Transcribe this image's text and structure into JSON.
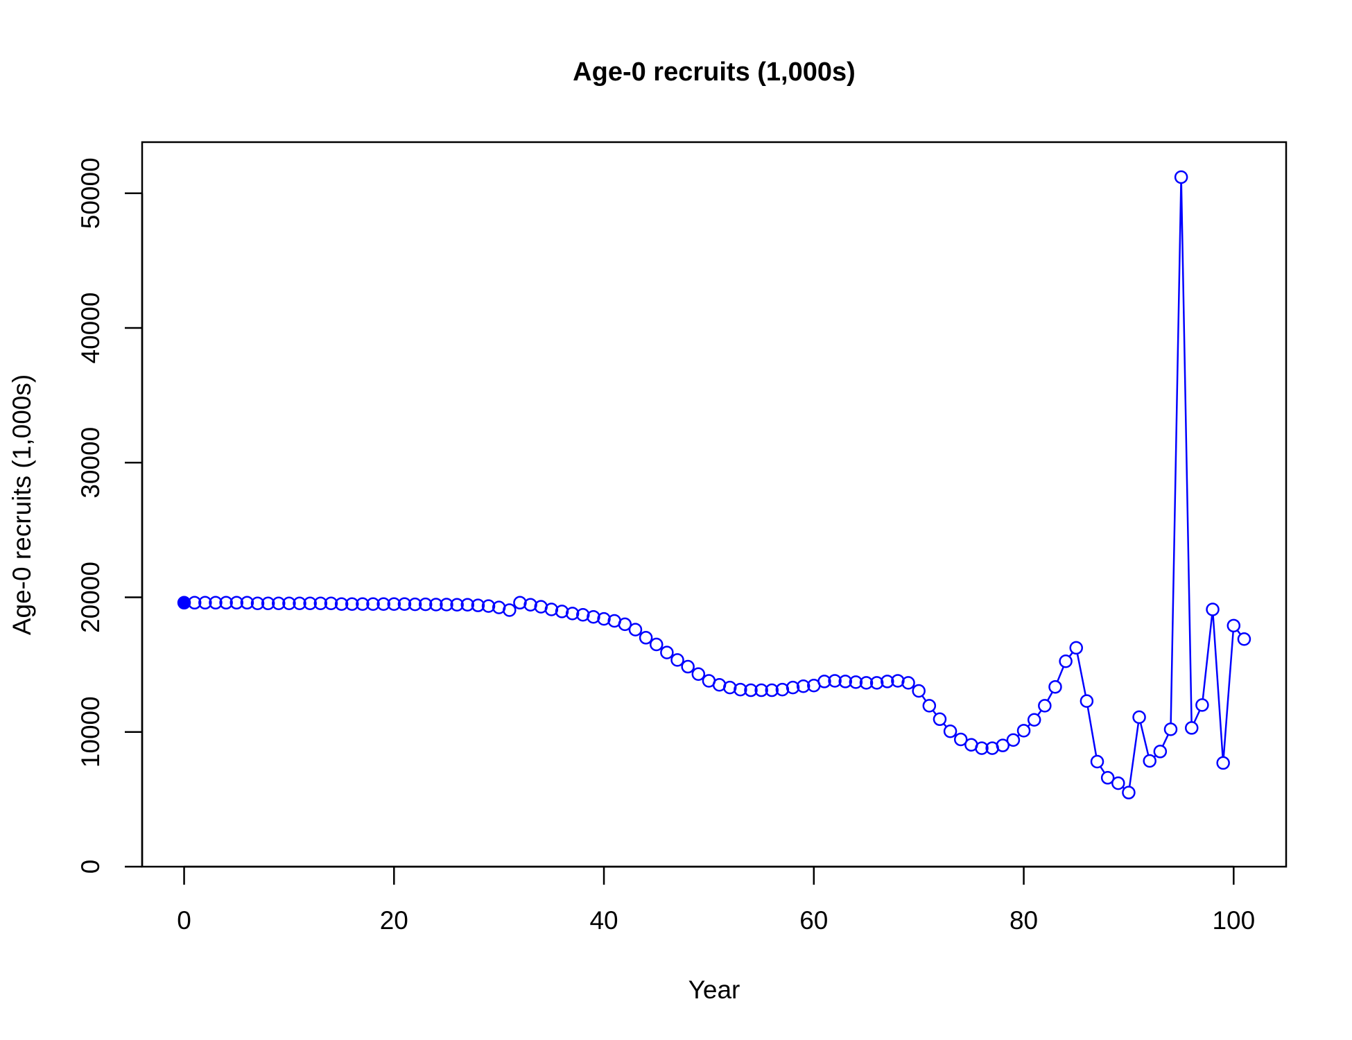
{
  "chart_data": {
    "type": "line",
    "title": "Age-0 recruits (1,000s)",
    "xlabel": "Year",
    "ylabel": "Age-0 recruits (1,000s)",
    "xlim": [
      -4,
      105
    ],
    "ylim": [
      0,
      53800
    ],
    "x_ticks": [
      0,
      20,
      40,
      60,
      80,
      100
    ],
    "y_ticks": [
      0,
      10000,
      20000,
      30000,
      40000,
      50000
    ],
    "grid": false,
    "legend": "none",
    "series": [
      {
        "color": "#0000ff",
        "marker": "open-circle",
        "first_point_filled": true,
        "x": [
          0,
          1,
          2,
          3,
          4,
          5,
          6,
          7,
          8,
          9,
          10,
          11,
          12,
          13,
          14,
          15,
          16,
          17,
          18,
          19,
          20,
          21,
          22,
          23,
          24,
          25,
          26,
          27,
          28,
          29,
          30,
          31,
          32,
          33,
          34,
          35,
          36,
          37,
          38,
          39,
          40,
          41,
          42,
          43,
          44,
          45,
          46,
          47,
          48,
          49,
          50,
          51,
          52,
          53,
          54,
          55,
          56,
          57,
          58,
          59,
          60,
          61,
          62,
          63,
          64,
          65,
          66,
          67,
          68,
          69,
          70,
          71,
          72,
          73,
          74,
          75,
          76,
          77,
          78,
          79,
          80,
          81,
          82,
          83,
          84,
          85,
          86,
          87,
          88,
          89,
          90,
          91,
          92,
          93,
          94,
          95,
          96,
          97,
          98,
          99,
          100,
          101
        ],
        "y": [
          19600,
          19600,
          19600,
          19600,
          19600,
          19600,
          19600,
          19550,
          19550,
          19550,
          19550,
          19550,
          19550,
          19550,
          19550,
          19500,
          19500,
          19500,
          19500,
          19500,
          19500,
          19500,
          19480,
          19480,
          19460,
          19460,
          19450,
          19450,
          19400,
          19350,
          19250,
          19050,
          19600,
          19450,
          19300,
          19100,
          18950,
          18800,
          18700,
          18550,
          18400,
          18250,
          18000,
          17600,
          17000,
          16500,
          15900,
          15350,
          14850,
          14300,
          13800,
          13500,
          13300,
          13150,
          13100,
          13100,
          13100,
          13150,
          13300,
          13400,
          13450,
          13750,
          13800,
          13750,
          13700,
          13650,
          13650,
          13750,
          13800,
          13650,
          13050,
          11950,
          10950,
          10050,
          9450,
          9050,
          8800,
          8800,
          9000,
          9400,
          10100,
          10900,
          11950,
          13350,
          15250,
          16250,
          12300,
          7800,
          6600,
          6200,
          5500,
          11100,
          7850,
          8550,
          10200,
          51200,
          10300,
          12000,
          19100,
          7700,
          17900,
          16900
        ]
      }
    ]
  }
}
